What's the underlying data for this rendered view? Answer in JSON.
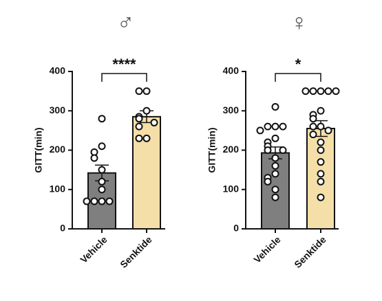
{
  "chart_data": [
    {
      "type": "bar",
      "title": "♂",
      "ylabel": "GITT(min)",
      "categories": [
        "Vehicle",
        "Senktide"
      ],
      "values": [
        142,
        285
      ],
      "errors": [
        20,
        15
      ],
      "points": [
        [
          280,
          210,
          195,
          180,
          150,
          120,
          100,
          70,
          70,
          70,
          70
        ],
        [
          350,
          350,
          300,
          285,
          280,
          270,
          260,
          230,
          230
        ]
      ],
      "colors": [
        "#7f7f7f",
        "#f5dfa8"
      ],
      "ylim": [
        0,
        400
      ],
      "yticks": [
        0,
        100,
        200,
        300,
        400
      ],
      "significance": "****"
    },
    {
      "type": "bar",
      "title": "♀",
      "ylabel": "GITT(min)",
      "categories": [
        "Vehicle",
        "Senktide"
      ],
      "values": [
        193,
        255
      ],
      "errors": [
        15,
        20
      ],
      "points": [
        [
          310,
          260,
          260,
          260,
          250,
          230,
          220,
          210,
          200,
          200,
          180,
          160,
          140,
          130,
          120,
          100,
          80
        ],
        [
          350,
          350,
          350,
          350,
          350,
          300,
          290,
          280,
          260,
          260,
          250,
          240,
          220,
          200,
          170,
          140,
          120,
          80
        ]
      ],
      "colors": [
        "#7f7f7f",
        "#f5dfa8"
      ],
      "ylim": [
        0,
        400
      ],
      "yticks": [
        0,
        100,
        200,
        300,
        400
      ],
      "significance": "*"
    }
  ]
}
